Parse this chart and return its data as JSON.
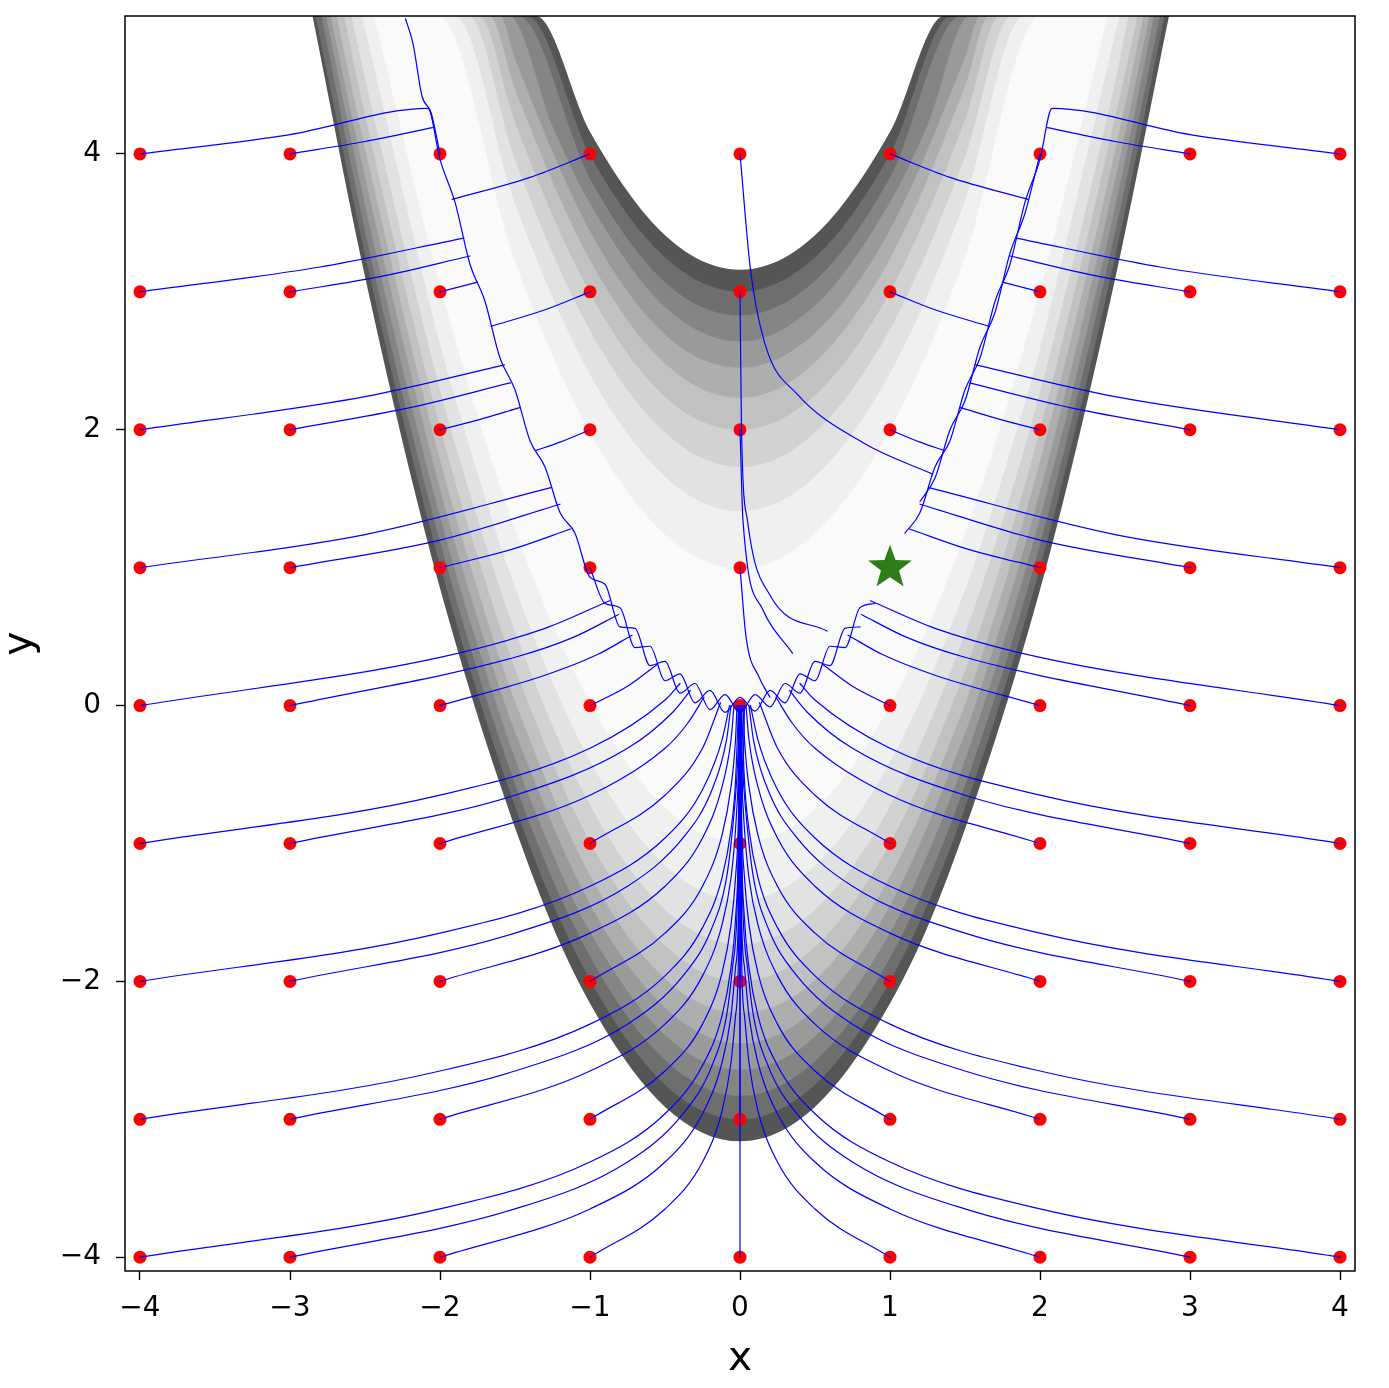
{
  "chart_data": {
    "type": "line",
    "xlabel": "x",
    "ylabel": "y",
    "xlim": [
      -4.1,
      4.1
    ],
    "ylim": [
      -4.1,
      5
    ],
    "xticks": [
      -4,
      -3,
      -2,
      -1,
      0,
      1,
      2,
      3,
      4
    ],
    "yticks": [
      -4,
      -2,
      0,
      2,
      4
    ],
    "series": [
      {
        "color": "#555555",
        "x": [
          -2.85,
          -2.5,
          -2,
          -1.36,
          -1,
          -0.5,
          0,
          0.5,
          1,
          1.36,
          2,
          2.5,
          2.86
        ],
        "values": [
          null,
          null,
          null,
          null,
          null,
          null,
          null,
          null,
          null,
          null,
          null,
          null,
          null
        ],
        "upper": [
          5,
          5,
          5,
          5,
          4.16,
          3.41,
          3.16,
          3.41,
          4.16,
          5,
          5,
          5,
          5
        ],
        "lower": [
          5,
          3.11,
          0.85,
          -1.3,
          -2.16,
          -2.91,
          -3.16,
          -2.91,
          -2.16,
          -1.31,
          0.84,
          3.09,
          5
        ]
      },
      {
        "color": "#6e6e6e",
        "x": [
          -2.83,
          -2.5,
          -2,
          -1.42,
          -1,
          -0.5,
          0,
          0.5,
          1,
          1.41,
          2,
          2.5,
          2.83
        ],
        "values": [
          null,
          null,
          null,
          null,
          null,
          null,
          null,
          null,
          null,
          null,
          null,
          null,
          null
        ],
        "upper": [
          5,
          5,
          5,
          5,
          3.99,
          3.25,
          3,
          3.25,
          4,
          5,
          5,
          5,
          5
        ],
        "lower": [
          5,
          3.27,
          1.02,
          -0.97,
          -1.99,
          -2.75,
          -3,
          -2.75,
          -2,
          -1.01,
          1,
          3.25,
          5
        ]
      },
      {
        "color": "#858585",
        "x": [
          -2.79,
          -2.5,
          -2,
          -1.48,
          -1,
          -0.5,
          0,
          0.5,
          1,
          1.47,
          2,
          2.5,
          2.8
        ],
        "values": [
          null,
          null,
          null,
          null,
          null,
          null,
          null,
          null,
          null,
          null,
          null,
          null,
          null
        ],
        "upper": [
          5,
          5,
          5,
          5,
          3.82,
          3.07,
          2.83,
          3.08,
          3.83,
          5,
          5,
          5,
          5
        ],
        "lower": [
          5,
          3.44,
          1.19,
          -0.63,
          -1.82,
          -2.57,
          -2.83,
          -2.58,
          -1.83,
          -0.67,
          1.17,
          3.43,
          5
        ]
      },
      {
        "color": "#9a9a9a",
        "x": [
          -2.76,
          -2.5,
          -2,
          -1.54,
          -1.25,
          -1,
          -0.5,
          0,
          0.5,
          1,
          1.25,
          1.53,
          2,
          2.5,
          2.76
        ],
        "values": [
          null,
          null,
          null,
          null,
          null,
          null,
          null,
          null,
          null,
          null,
          null,
          null,
          null,
          null,
          null
        ],
        "upper": [
          5,
          5,
          5,
          5,
          4.2,
          3.64,
          2.89,
          2.64,
          2.9,
          3.65,
          4.21,
          5,
          5,
          5,
          5
        ],
        "lower": [
          5,
          3.63,
          1.37,
          -0.26,
          -1.07,
          -1.64,
          -2.39,
          -2.64,
          -2.4,
          -1.65,
          -1.08,
          -0.3,
          1.36,
          3.61,
          5
        ]
      },
      {
        "color": "#aeaeae",
        "x": [
          -2.73,
          -2.5,
          -2,
          -1.6,
          -1.5,
          -1,
          -0.5,
          0,
          0.5,
          1,
          1.5,
          1.6,
          2,
          2.5,
          2.73
        ],
        "values": [
          null,
          null,
          null,
          null,
          null,
          null,
          null,
          null,
          null,
          null,
          null,
          null,
          null,
          null,
          null
        ],
        "upper": [
          5,
          5,
          5,
          5,
          4.69,
          3.44,
          2.69,
          2.45,
          2.7,
          3.45,
          4.7,
          5,
          5,
          5,
          5
        ],
        "lower": [
          5,
          3.83,
          1.57,
          0.12,
          -0.19,
          -1.44,
          -2.19,
          -2.45,
          -2.2,
          -1.45,
          -0.2,
          0.11,
          1.55,
          3.81,
          5
        ]
      },
      {
        "color": "#c1c1c1",
        "x": [
          -2.69,
          -2.5,
          -2,
          -1.67,
          -1.5,
          -1,
          -0.5,
          0,
          0.5,
          1,
          1.5,
          1.66,
          2,
          2.5,
          2.69
        ],
        "values": [
          null,
          null,
          null,
          null,
          null,
          null,
          null,
          null,
          null,
          null,
          null,
          null,
          null,
          null,
          null
        ],
        "upper": [
          5,
          5,
          5,
          5,
          4.47,
          3.23,
          2.48,
          2.23,
          2.49,
          3.24,
          4.49,
          5,
          5,
          5,
          5
        ],
        "lower": [
          5,
          4.04,
          1.78,
          0.57,
          0.03,
          -1.23,
          -1.98,
          -2.23,
          -1.99,
          -1.24,
          0.01,
          0.52,
          1.77,
          4.02,
          5
        ]
      },
      {
        "color": "#d2d2d2",
        "x": [
          -2.64,
          -2.5,
          -2,
          -1.74,
          -1.5,
          -1,
          -0.5,
          0,
          0.5,
          1,
          1.5,
          1.73,
          2,
          2.5,
          2.65
        ],
        "values": [
          null,
          null,
          null,
          null,
          null,
          null,
          null,
          null,
          null,
          null,
          null,
          null,
          null,
          null,
          null
        ],
        "upper": [
          5,
          5,
          5,
          5,
          4.23,
          2.99,
          2.24,
          2,
          2.25,
          3,
          4.25,
          5,
          5,
          5,
          5
        ],
        "lower": [
          5,
          4.28,
          2.02,
          1.05,
          0.27,
          -0.99,
          -1.74,
          -2,
          -1.75,
          -1,
          0.25,
          0.99,
          2,
          4.26,
          5
        ]
      },
      {
        "color": "#e2e2e2",
        "x": [
          -2.59,
          -2.5,
          -2,
          -1.81,
          -1.5,
          -1,
          -0.5,
          0,
          0.5,
          1,
          1.5,
          1.81,
          2,
          2.5,
          2.59
        ],
        "values": [
          null,
          null,
          null,
          null,
          null,
          null,
          null,
          null,
          null,
          null,
          null,
          null,
          null,
          null,
          null
        ],
        "upper": [
          5,
          5,
          5,
          5,
          3.96,
          2.72,
          1.98,
          1.73,
          1.98,
          2.73,
          3.98,
          5,
          5,
          5,
          5
        ],
        "lower": [
          5,
          4.55,
          2.29,
          1.57,
          0.54,
          -0.72,
          -1.48,
          -1.73,
          -1.48,
          -0.73,
          0.52,
          1.55,
          2.27,
          4.52,
          5
        ]
      },
      {
        "color": "#f0f0f0",
        "x": [
          -2.52,
          -2,
          -1.9,
          -1.5,
          -1,
          -0.5,
          0,
          0.5,
          1,
          1.5,
          1.89,
          2,
          2.53
        ],
        "values": [
          null,
          null,
          null,
          null,
          null,
          null,
          null,
          null,
          null,
          null,
          null,
          null,
          null
        ],
        "upper": [
          5,
          5,
          5,
          3.64,
          2.4,
          1.66,
          1.41,
          1.66,
          2.41,
          3.66,
          5,
          5,
          5
        ],
        "lower": [
          5,
          2.62,
          2.23,
          0.86,
          -0.4,
          -1.16,
          -1.41,
          -1.16,
          -0.41,
          0.84,
          2.16,
          2.59,
          5
        ]
      },
      {
        "color": "#fafafa",
        "x": [
          -2.44,
          -2.01,
          -1.5,
          -1,
          -0.5,
          0,
          0.5,
          1,
          1.5,
          2,
          2.45
        ],
        "values": [
          null,
          null,
          null,
          null,
          null,
          null,
          null,
          null,
          null,
          null,
          null
        ],
        "upper": [
          5,
          5,
          3.22,
          1.98,
          1.24,
          0.99,
          1.25,
          2,
          3.25,
          5,
          5
        ],
        "lower": [
          5,
          3.09,
          1.28,
          0.02,
          -0.74,
          -0.99,
          -0.75,
          0,
          1.25,
          3.01,
          5
        ]
      },
      {
        "type": "scatter",
        "color": "#ff0000",
        "marker": "circle",
        "x": [
          -4,
          -3,
          -2,
          -1,
          0,
          1,
          2,
          3,
          4,
          -4,
          -3,
          -2,
          -1,
          0,
          1,
          2,
          3,
          4,
          -4,
          -3,
          -2,
          -1,
          0,
          1,
          2,
          3,
          4,
          -4,
          -3,
          -2,
          -1,
          0,
          1,
          2,
          3,
          4,
          -4,
          -3,
          -2,
          -1,
          0,
          1,
          2,
          3,
          4,
          -4,
          -3,
          -2,
          -1,
          0,
          1,
          2,
          3,
          4,
          -4,
          -3,
          -2,
          -1,
          0,
          1,
          2,
          3,
          4,
          -4,
          -3,
          -2,
          -1,
          0,
          1,
          2,
          3,
          4,
          -4,
          -3,
          -2,
          -1,
          0,
          1,
          2,
          3,
          4
        ],
        "values": [
          4,
          4,
          4,
          4,
          4,
          4,
          4,
          4,
          4,
          3,
          3,
          3,
          3,
          3,
          3,
          3,
          3,
          3,
          2,
          2,
          2,
          2,
          2,
          2,
          2,
          2,
          2,
          1,
          1,
          1,
          1,
          1,
          null,
          1,
          1,
          1,
          0,
          0,
          0,
          0,
          0,
          0,
          0,
          0,
          0,
          -1,
          -1,
          -1,
          -1,
          -1,
          -1,
          -1,
          -1,
          -1,
          -2,
          -2,
          -2,
          -2,
          -2,
          -2,
          -2,
          -2,
          -2,
          -3,
          -3,
          -3,
          -3,
          -3,
          -3,
          -3,
          -3,
          -3,
          -4,
          -4,
          -4,
          -4,
          -4,
          -4,
          -4,
          -4,
          -4
        ]
      },
      {
        "color": "#0000ff",
        "x": [
          -4,
          -3,
          -2.08,
          -2,
          -1.9,
          -1.8,
          -1.7,
          -1.6,
          -1.5,
          -1.4,
          -1.3,
          -1.2,
          -1.1,
          -1,
          -0.9,
          -0.8,
          -0.7,
          -0.6,
          -0.5,
          -0.4,
          -0.3,
          -0.2,
          -0.1,
          0,
          0.1,
          0.2,
          0.3,
          0.4,
          0.5,
          0.6,
          0.7,
          0.8
        ],
        "values": [
          4,
          4.14,
          4.33,
          3.96,
          3.65,
          3.2,
          2.93,
          2.52,
          2.29,
          1.92,
          1.73,
          1.4,
          1.25,
          0.93,
          0.88,
          0.57,
          0.56,
          0.29,
          0.32,
          0.09,
          0.16,
          -0.03,
          0.08,
          -0.05,
          0.08,
          -0.01,
          0.16,
          0.09,
          0.32,
          0.29,
          0.56,
          0.57
        ]
      },
      {
        "color": "#0000ff",
        "x": [
          -3,
          -2.5,
          -2.05
        ],
        "values": [
          4,
          4.09,
          4.19
        ]
      },
      {
        "color": "#0000ff",
        "x": [
          -2,
          -2.06,
          -2.12,
          -2.18,
          -2.23
        ],
        "values": [
          4,
          4.3,
          4.42,
          4.8,
          4.98
        ]
      },
      {
        "color": "#0000ff",
        "x": [
          -1,
          -1.4,
          -1.92
        ],
        "values": [
          4,
          3.83,
          3.67
        ]
      },
      {
        "color": "#0000ff",
        "x": [
          0,
          0.07,
          0.17,
          0.38,
          0.83,
          1.28
        ],
        "values": [
          4,
          3.16,
          2.61,
          2.26,
          1.9,
          1.68
        ]
      },
      {
        "color": "#0000ff",
        "x": [
          1,
          1.4,
          1.92
        ],
        "values": [
          4,
          3.83,
          3.67
        ]
      },
      {
        "color": "#0000ff",
        "x": [
          2,
          1.9,
          1.8,
          1.7,
          1.6,
          1.5,
          1.4,
          1.3,
          1.2
        ],
        "values": [
          4,
          3.57,
          3.28,
          2.85,
          2.6,
          2.21,
          2,
          1.65,
          1.48
        ]
      },
      {
        "color": "#0000ff",
        "x": [
          3,
          2.5,
          2.05
        ],
        "values": [
          4,
          4.09,
          4.19
        ]
      },
      {
        "color": "#0000ff",
        "x": [
          4,
          3,
          2.08,
          2,
          1.9,
          1.8,
          1.7,
          1.6,
          1.5,
          1.4,
          1.3,
          1.2,
          1.1
        ],
        "values": [
          4,
          4.14,
          4.33,
          3.96,
          3.65,
          3.2,
          2.93,
          2.52,
          2.29,
          1.92,
          1.73,
          1.4,
          1.25
        ]
      },
      {
        "color": "#0000ff",
        "x": [
          -4,
          -2.8,
          -1.84
        ],
        "values": [
          3,
          3.18,
          3.39
        ]
      },
      {
        "color": "#0000ff",
        "x": [
          -3,
          -2.4,
          -1.8
        ],
        "values": [
          3,
          3.11,
          3.26
        ]
      },
      {
        "color": "#0000ff",
        "x": [
          -2,
          -1.75
        ],
        "values": [
          3,
          3.07
        ]
      },
      {
        "color": "#0000ff",
        "x": [
          -1,
          -1.3,
          -1.66
        ],
        "values": [
          3,
          2.87,
          2.75
        ]
      },
      {
        "color": "#0000ff",
        "x": [
          0,
          0.01,
          0.05,
          0.2,
          0.58
        ],
        "values": [
          3,
          2,
          1.34,
          0.8,
          0.54
        ]
      },
      {
        "color": "#0000ff",
        "x": [
          1,
          1.3,
          1.66
        ],
        "values": [
          3,
          2.87,
          2.75
        ]
      },
      {
        "color": "#0000ff",
        "x": [
          2,
          1.75
        ],
        "values": [
          3,
          3.07
        ]
      },
      {
        "color": "#0000ff",
        "x": [
          3,
          2.4,
          1.8
        ],
        "values": [
          3,
          3.11,
          3.26
        ]
      },
      {
        "color": "#0000ff",
        "x": [
          4,
          2.8,
          1.84
        ],
        "values": [
          3,
          3.18,
          3.39
        ]
      },
      {
        "color": "#0000ff",
        "x": [
          -4,
          -2.5,
          -1.57
        ],
        "values": [
          2,
          2.24,
          2.47
        ]
      },
      {
        "color": "#0000ff",
        "x": [
          -3,
          -2.2,
          -1.53
        ],
        "values": [
          2,
          2.16,
          2.34
        ]
      },
      {
        "color": "#0000ff",
        "x": [
          -2,
          -1.75,
          -1.47
        ],
        "values": [
          2,
          2.07,
          2.16
        ]
      },
      {
        "color": "#0000ff",
        "x": [
          -1,
          -1.2,
          -1.36
        ],
        "values": [
          2,
          1.91,
          1.85
        ]
      },
      {
        "color": "#0000ff",
        "x": [
          0,
          0.02,
          0.15,
          0.35
        ],
        "values": [
          2,
          1.34,
          0.7,
          0.38
        ]
      },
      {
        "color": "#0000ff",
        "x": [
          1,
          1.2,
          1.36
        ],
        "values": [
          2,
          1.91,
          1.85
        ]
      },
      {
        "color": "#0000ff",
        "x": [
          2,
          1.75,
          1.47
        ],
        "values": [
          2,
          2.07,
          2.16
        ]
      },
      {
        "color": "#0000ff",
        "x": [
          3,
          2.2,
          1.53
        ],
        "values": [
          2,
          2.16,
          2.34
        ]
      },
      {
        "color": "#0000ff",
        "x": [
          4,
          2.5,
          1.57
        ],
        "values": [
          2,
          2.24,
          2.47
        ]
      },
      {
        "color": "#0000ff",
        "x": [
          -4,
          -2.5,
          -1.26
        ],
        "values": [
          1,
          1.24,
          1.58
        ]
      },
      {
        "color": "#0000ff",
        "x": [
          -3,
          -2,
          -1.2
        ],
        "values": [
          1,
          1.2,
          1.46
        ]
      },
      {
        "color": "#0000ff",
        "x": [
          -2,
          -1.5,
          -1.13
        ],
        "values": [
          1,
          1.14,
          1.28
        ]
      },
      {
        "color": "#0000ff",
        "x": [
          -1,
          -0.9,
          -0.8,
          -0.7,
          -0.6,
          -0.5,
          -0.4,
          -0.3,
          -0.2,
          -0.1,
          0,
          0.1,
          0.2,
          0.3,
          0.4,
          0.5,
          0.6,
          0.7,
          0.8,
          0.9
        ],
        "values": [
          1,
          0.74,
          0.71,
          0.42,
          0.43,
          0.18,
          0.23,
          0.02,
          0.11,
          -0.05,
          0.06,
          -0.04,
          0.11,
          0.02,
          0.23,
          0.18,
          0.43,
          0.42,
          0.71,
          0.74
        ]
      },
      {
        "color": "#0000ff",
        "x": [
          0,
          0.04,
          0.13,
          0.2
        ],
        "values": [
          1,
          0.5,
          0.2,
          0.06
        ]
      },
      {
        "color": "#0000ff",
        "x": [
          2,
          1.5,
          1.13
        ],
        "values": [
          1,
          1.14,
          1.28
        ]
      },
      {
        "color": "#0000ff",
        "x": [
          3,
          2,
          1.2
        ],
        "values": [
          1,
          1.2,
          1.46
        ]
      },
      {
        "color": "#0000ff",
        "x": [
          4,
          2.5,
          1.26
        ],
        "values": [
          1,
          1.24,
          1.58
        ]
      },
      {
        "color": "#0000ff",
        "x": [
          -4,
          -2,
          -1.3,
          -0.87
        ],
        "values": [
          0,
          0.35,
          0.56,
          0.76
        ]
      },
      {
        "color": "#0000ff",
        "x": [
          -3,
          -1.5,
          -1.1,
          -0.81
        ],
        "values": [
          0,
          0.35,
          0.5,
          0.66
        ]
      },
      {
        "color": "#0000ff",
        "x": [
          -2,
          -1.3,
          -0.95,
          -0.72
        ],
        "values": [
          0,
          0.22,
          0.37,
          0.51
        ]
      },
      {
        "color": "#0000ff",
        "x": [
          -1,
          -0.75,
          -0.55
        ],
        "values": [
          0,
          0.14,
          0.3
        ]
      },
      {
        "color": "#0000ff",
        "x": [
          1,
          0.75,
          0.55
        ],
        "values": [
          0,
          0.14,
          0.3
        ]
      },
      {
        "color": "#0000ff",
        "x": [
          2,
          1.3,
          0.95,
          0.72
        ],
        "values": [
          0,
          0.22,
          0.37,
          0.51
        ]
      },
      {
        "color": "#0000ff",
        "x": [
          3,
          1.5,
          1.1,
          0.81
        ],
        "values": [
          0,
          0.35,
          0.5,
          0.66
        ]
      },
      {
        "color": "#0000ff",
        "x": [
          4,
          2,
          1.3,
          0.87
        ],
        "values": [
          0,
          0.35,
          0.56,
          0.76
        ]
      },
      {
        "color": "#0000ff",
        "x": [
          -4,
          -2,
          -1,
          -0.5,
          -0.4
        ],
        "values": [
          -1,
          -0.65,
          -0.31,
          0.04,
          0.16
        ]
      },
      {
        "color": "#0000ff",
        "x": [
          -3,
          -1.5,
          -0.75,
          -0.45,
          -0.33
        ],
        "values": [
          -1,
          -0.65,
          -0.31,
          -0.05,
          0.11
        ]
      },
      {
        "color": "#0000ff",
        "x": [
          -2,
          -1,
          -0.5,
          -0.35,
          -0.24
        ],
        "values": [
          -1,
          -0.65,
          -0.31,
          -0.13,
          0.06
        ]
      },
      {
        "color": "#0000ff",
        "x": [
          -1,
          -0.5,
          -0.25,
          -0.13
        ],
        "values": [
          -1,
          -0.65,
          -0.31,
          0.02
        ]
      },
      {
        "color": "#0000ff",
        "x": [
          0,
          0.02,
          0.03
        ],
        "values": [
          -1,
          -0.5,
          0
        ]
      },
      {
        "color": "#0000ff",
        "x": [
          1,
          0.5,
          0.25,
          0.13
        ],
        "values": [
          -1,
          -0.65,
          -0.31,
          0.02
        ]
      },
      {
        "color": "#0000ff",
        "x": [
          2,
          1,
          0.5,
          0.35,
          0.24
        ],
        "values": [
          -1,
          -0.65,
          -0.31,
          -0.13,
          0.06
        ]
      },
      {
        "color": "#0000ff",
        "x": [
          3,
          1.5,
          0.75,
          0.45,
          0.33
        ],
        "values": [
          -1,
          -0.65,
          -0.31,
          -0.05,
          0.11
        ]
      },
      {
        "color": "#0000ff",
        "x": [
          4,
          2,
          1,
          0.5,
          0.4
        ],
        "values": [
          -1,
          -0.65,
          -0.31,
          0.04,
          0.16
        ]
      },
      {
        "color": "#0000ff",
        "x": [
          -4,
          -2,
          -1,
          -0.5,
          -0.25,
          -0.12,
          -0.07
        ],
        "values": [
          -2,
          -1.65,
          -1.31,
          -0.96,
          -0.61,
          -0.25,
          0
        ]
      },
      {
        "color": "#0000ff",
        "x": [
          -3,
          -1.5,
          -0.75,
          -0.38,
          -0.19,
          -0.09,
          -0.06
        ],
        "values": [
          -2,
          -1.65,
          -1.31,
          -0.96,
          -0.62,
          -0.25,
          0
        ]
      },
      {
        "color": "#0000ff",
        "x": [
          -2,
          -1,
          -0.5,
          -0.25,
          -0.12,
          -0.06,
          -0.04
        ],
        "values": [
          -2,
          -1.65,
          -1.31,
          -0.96,
          -0.59,
          -0.25,
          0
        ]
      },
      {
        "color": "#0000ff",
        "x": [
          -1,
          -0.5,
          -0.25,
          -0.12,
          -0.06,
          -0.03,
          -0.02
        ],
        "values": [
          -2,
          -1.65,
          -1.31,
          -0.94,
          -0.59,
          -0.25,
          0
        ]
      },
      {
        "color": "#0000ff",
        "x": [
          0,
          0.01,
          0.01
        ],
        "values": [
          -2,
          -1,
          0
        ]
      },
      {
        "color": "#0000ff",
        "x": [
          1,
          0.5,
          0.25,
          0.12,
          0.06,
          0.03,
          0.02
        ],
        "values": [
          -2,
          -1.65,
          -1.31,
          -0.94,
          -0.59,
          -0.25,
          0
        ]
      },
      {
        "color": "#0000ff",
        "x": [
          2,
          1,
          0.5,
          0.25,
          0.12,
          0.06,
          0.04
        ],
        "values": [
          -2,
          -1.65,
          -1.31,
          -0.96,
          -0.59,
          -0.25,
          0
        ]
      },
      {
        "color": "#0000ff",
        "x": [
          3,
          1.5,
          0.75,
          0.38,
          0.19,
          0.09,
          0.06
        ],
        "values": [
          -2,
          -1.65,
          -1.31,
          -0.96,
          -0.62,
          -0.25,
          0
        ]
      },
      {
        "color": "#0000ff",
        "x": [
          4,
          2,
          1,
          0.5,
          0.25,
          0.12,
          0.07
        ],
        "values": [
          -2,
          -1.65,
          -1.31,
          -0.96,
          -0.61,
          -0.25,
          0
        ]
      },
      {
        "color": "#0000ff",
        "x": [
          -4,
          -2,
          -1,
          -0.5,
          -0.25,
          -0.12,
          -0.06,
          -0.03,
          -0.01
        ],
        "values": [
          -3,
          -2.65,
          -2.31,
          -1.96,
          -1.61,
          -1.25,
          -0.9,
          -0.55,
          0
        ]
      },
      {
        "color": "#0000ff",
        "x": [
          -3,
          -1.5,
          -0.75,
          -0.38,
          -0.19,
          -0.09,
          -0.05,
          -0.02,
          0
        ],
        "values": [
          -3,
          -2.65,
          -2.31,
          -1.96,
          -1.62,
          -1.25,
          -0.9,
          -0.5,
          0
        ]
      },
      {
        "color": "#0000ff",
        "x": [
          -2,
          -1,
          -0.5,
          -0.25,
          -0.12,
          -0.06,
          -0.03,
          -0.01,
          0
        ],
        "values": [
          -3,
          -2.65,
          -2.31,
          -1.96,
          -1.59,
          -1.25,
          -0.9,
          -0.48,
          0
        ]
      },
      {
        "color": "#0000ff",
        "x": [
          -1,
          -0.5,
          -0.25,
          -0.12,
          -0.06,
          -0.03,
          -0.01,
          0
        ],
        "values": [
          -3,
          -2.65,
          -2.31,
          -1.94,
          -1.59,
          -1.25,
          -0.79,
          0
        ]
      },
      {
        "color": "#0000ff",
        "x": [
          0,
          0,
          -0.01
        ],
        "values": [
          -3,
          -1.5,
          0
        ]
      },
      {
        "color": "#0000ff",
        "x": [
          1,
          0.5,
          0.25,
          0.12,
          0.06,
          0.03,
          0.01,
          0
        ],
        "values": [
          -3,
          -2.65,
          -2.31,
          -1.94,
          -1.59,
          -1.25,
          -0.79,
          0
        ]
      },
      {
        "color": "#0000ff",
        "x": [
          2,
          1,
          0.5,
          0.25,
          0.12,
          0.06,
          0.03,
          0.01,
          0
        ],
        "values": [
          -3,
          -2.65,
          -2.31,
          -1.96,
          -1.59,
          -1.25,
          -0.9,
          -0.48,
          0
        ]
      },
      {
        "color": "#0000ff",
        "x": [
          3,
          1.5,
          0.75,
          0.38,
          0.19,
          0.09,
          0.05,
          0.02,
          0
        ],
        "values": [
          -3,
          -2.65,
          -2.31,
          -1.96,
          -1.62,
          -1.25,
          -0.9,
          -0.5,
          0
        ]
      },
      {
        "color": "#0000ff",
        "x": [
          4,
          2,
          1,
          0.5,
          0.25,
          0.12,
          0.06,
          0.03,
          0.01
        ],
        "values": [
          -3,
          -2.65,
          -2.31,
          -1.96,
          -1.61,
          -1.25,
          -0.9,
          -0.55,
          0
        ]
      },
      {
        "color": "#0000ff",
        "x": [
          -4,
          -2,
          -1,
          -0.5,
          -0.25,
          -0.12,
          -0.06,
          -0.03,
          -0.01,
          0
        ],
        "values": [
          -4,
          -3.65,
          -3.31,
          -2.96,
          -2.61,
          -2.25,
          -1.9,
          -1.55,
          -1,
          0
        ]
      },
      {
        "color": "#0000ff",
        "x": [
          -3,
          -1.5,
          -0.75,
          -0.38,
          -0.19,
          -0.09,
          -0.05,
          -0.02,
          -0.01,
          0
        ],
        "values": [
          -4,
          -3.65,
          -3.31,
          -2.96,
          -2.62,
          -2.25,
          -1.9,
          -1.5,
          -1,
          0
        ]
      },
      {
        "color": "#0000ff",
        "x": [
          -2,
          -1,
          -0.5,
          -0.25,
          -0.12,
          -0.06,
          -0.03,
          -0.01,
          0
        ],
        "values": [
          -4,
          -3.65,
          -3.31,
          -2.96,
          -2.59,
          -2.25,
          -1.9,
          -1.48,
          0
        ]
      },
      {
        "color": "#0000ff",
        "x": [
          -1,
          -0.5,
          -0.25,
          -0.12,
          -0.06,
          -0.03,
          -0.01,
          0
        ],
        "values": [
          -4,
          -3.65,
          -3.31,
          -2.94,
          -2.59,
          -2.25,
          -1.79,
          0
        ]
      },
      {
        "color": "#0000ff",
        "x": [
          0,
          0
        ],
        "values": [
          -4,
          0
        ]
      },
      {
        "color": "#0000ff",
        "x": [
          1,
          0.5,
          0.25,
          0.12,
          0.06,
          0.03,
          0.01,
          0
        ],
        "values": [
          -4,
          -3.65,
          -3.31,
          -2.94,
          -2.59,
          -2.25,
          -1.79,
          0
        ]
      },
      {
        "color": "#0000ff",
        "x": [
          2,
          1,
          0.5,
          0.25,
          0.12,
          0.06,
          0.03,
          0.01,
          0
        ],
        "values": [
          -4,
          -3.65,
          -3.31,
          -2.96,
          -2.59,
          -2.25,
          -1.9,
          -1.48,
          0
        ]
      },
      {
        "color": "#0000ff",
        "x": [
          3,
          1.5,
          0.75,
          0.38,
          0.19,
          0.09,
          0.05,
          0.02,
          0.01,
          0
        ],
        "values": [
          -4,
          -3.65,
          -3.31,
          -2.96,
          -2.62,
          -2.25,
          -1.9,
          -1.5,
          -1,
          0
        ]
      },
      {
        "color": "#0000ff",
        "x": [
          4,
          2,
          1,
          0.5,
          0.25,
          0.12,
          0.06,
          0.03,
          0.01,
          0
        ],
        "values": [
          -4,
          -3.65,
          -3.31,
          -2.96,
          -2.61,
          -2.25,
          -1.9,
          -1.55,
          -1,
          0
        ]
      },
      {
        "type": "scatter",
        "color": "#2e7d1a",
        "marker": "star",
        "x": [
          1
        ],
        "values": [
          1
        ]
      }
    ]
  }
}
